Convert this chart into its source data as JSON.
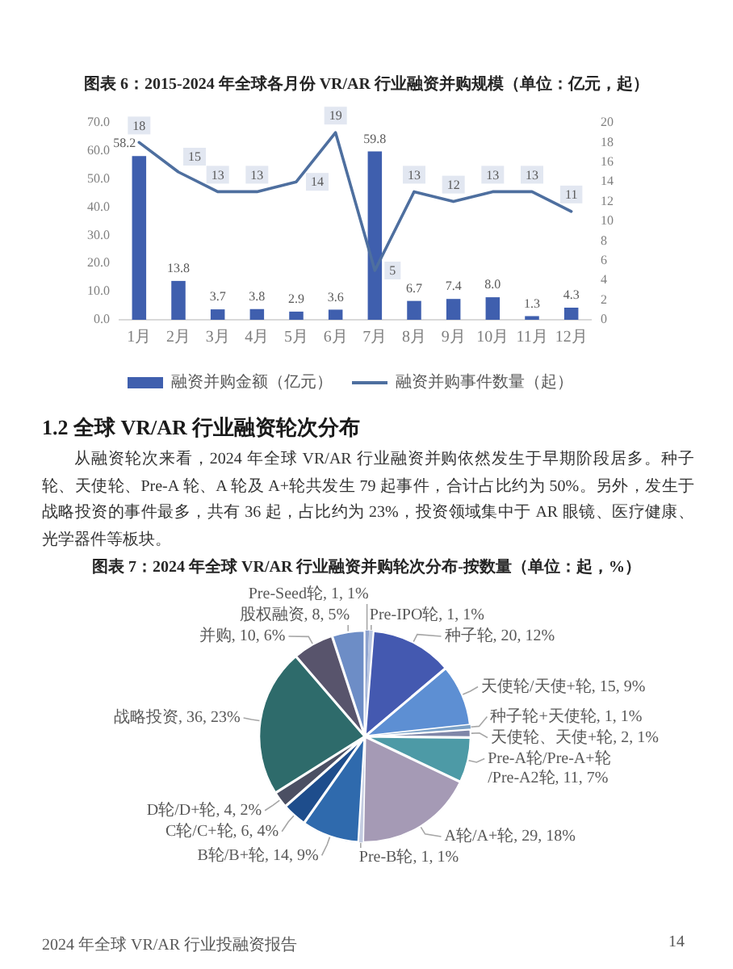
{
  "chart_data": [
    {
      "type": "bar",
      "title": "图表 6：2015-2024 年全球各月份 VR/AR 行业融资并购规模（单位：亿元，起）",
      "categories": [
        "1月",
        "2月",
        "3月",
        "4月",
        "5月",
        "6月",
        "7月",
        "8月",
        "9月",
        "10月",
        "11月",
        "12月"
      ],
      "series": [
        {
          "name": "融资并购金额（亿元）",
          "type": "bar",
          "color": "#3f5fae",
          "values": [
            58.2,
            13.8,
            3.7,
            3.8,
            2.9,
            3.6,
            59.8,
            6.7,
            7.4,
            8.0,
            1.3,
            4.3
          ],
          "value_labels": [
            "58.2",
            "13.8",
            "3.7",
            "3.8",
            "2.9",
            "3.6",
            "59.8",
            "6.7",
            "7.4",
            "8.0",
            "1.3",
            "4.3"
          ]
        },
        {
          "name": "融资并购事件数量（起）",
          "type": "line",
          "axis": "y2",
          "color": "#4e6f9f",
          "values": [
            18,
            15,
            13,
            13,
            14,
            19,
            5,
            13,
            12,
            13,
            13,
            11
          ],
          "value_labels": [
            "18",
            "15",
            "13",
            "13",
            "14",
            "19",
            "5",
            "13",
            "12",
            "13",
            "13",
            "11"
          ]
        }
      ],
      "ylim": [
        0,
        70
      ],
      "yticks": [
        {
          "value": 0,
          "label": "0.0"
        },
        {
          "value": 10,
          "label": "10.0"
        },
        {
          "value": 20,
          "label": "20.0"
        },
        {
          "value": 30,
          "label": "30.0"
        },
        {
          "value": 40,
          "label": "40.0"
        },
        {
          "value": 50,
          "label": "50.0"
        },
        {
          "value": 60,
          "label": "60.0"
        },
        {
          "value": 70,
          "label": "70.0"
        }
      ],
      "y2lim": [
        0,
        20
      ],
      "y2ticks": [
        0,
        2,
        4,
        6,
        8,
        10,
        12,
        14,
        16,
        18,
        20
      ],
      "legend": "bottom",
      "marker": "none"
    },
    {
      "type": "pie",
      "title": "图表 7：2024 年全球 VR/AR 行业融资并购轮次分布-按数量（单位：起，%）",
      "categories": [
        "Pre-Seed轮",
        "Pre-IPO轮",
        "种子轮",
        "天使轮/天使+轮",
        "种子轮+天使轮",
        "天使轮、天使+轮",
        "Pre-A轮/Pre-A+轮/Pre-A2轮",
        "A轮/A+轮",
        "Pre-B轮",
        "B轮/B+轮",
        "C轮/C+轮",
        "D轮/D+轮",
        "战略投资",
        "并购",
        "股权融资"
      ],
      "values": [
        1,
        1,
        20,
        15,
        1,
        2,
        11,
        29,
        1,
        14,
        6,
        4,
        36,
        10,
        8
      ],
      "value_labels": [
        "1, 1%",
        "1, 1%",
        "20, 12%",
        "15, 9%",
        "1, 1%",
        "2, 1%",
        "11, 7%",
        "29, 18%",
        "1, 1%",
        "14, 9%",
        "6, 4%",
        "4, 2%",
        "36, 23%",
        "10, 6%",
        "8, 5%"
      ],
      "colors": [
        "#8ea3cf",
        "#b9c6e2",
        "#4459b0",
        "#5d8fd3",
        "#7aa0c6",
        "#7f86a8",
        "#4d9aa6",
        "#a59ab5",
        "#c3cbe0",
        "#2f6aad",
        "#1e4d8c",
        "#4b4f63",
        "#2e6b6b",
        "#58546c",
        "#6d8dc6"
      ],
      "annotations": [
        "1.2 全球 VR/AR 行业融资轮次分布",
        "从融资轮次来看，2024 年全球 VR/AR 行业融资并购依然发生于早期阶段居多。种子轮、天使轮、Pre-A 轮、A 轮及 A+轮共发生 79 起事件，合计占比约为 50%。另外，发生于战略投资的事件最多，共有 36 起，占比约为 23%，投资领域集中于 AR 眼镜、医疗健康、光学器件等板块。",
        "2024 年全球 VR/AR 行业投融资报告",
        "14"
      ]
    }
  ]
}
